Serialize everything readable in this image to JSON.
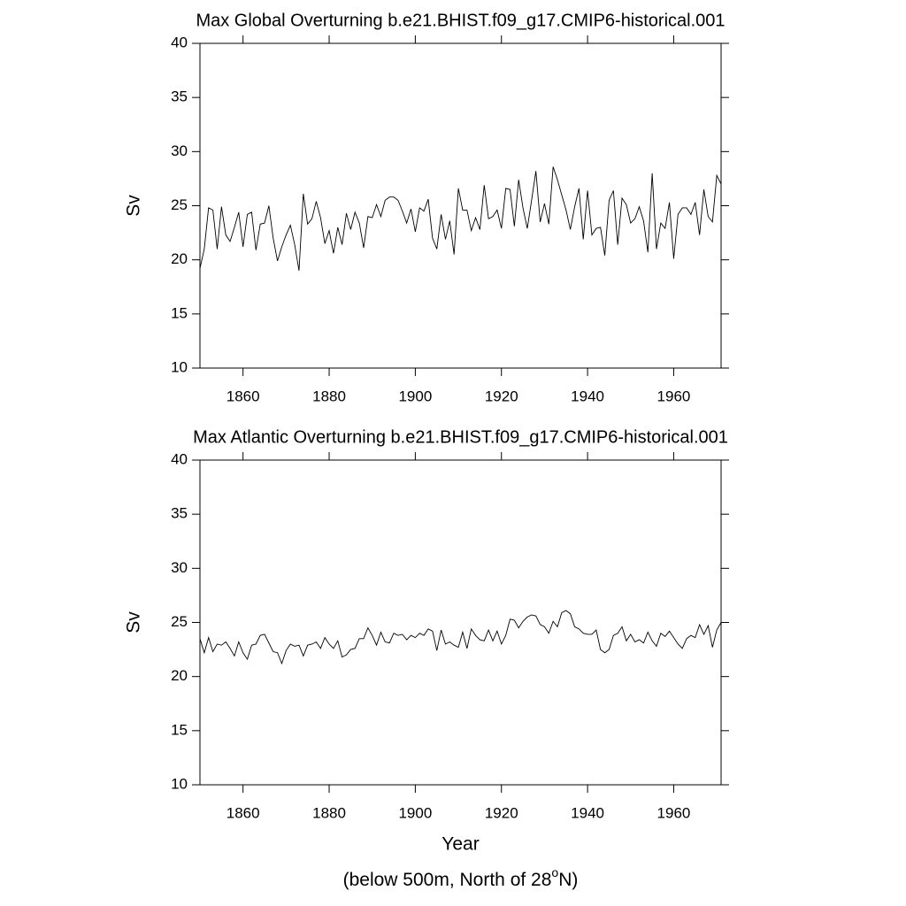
{
  "chart_data": [
    {
      "type": "line",
      "title": "Max Global Overturning b.e21.BHIST.f09_g17.CMIP6-historical.001",
      "ylabel": "Sv",
      "x": [
        1850,
        1851,
        1852,
        1853,
        1854,
        1855,
        1856,
        1857,
        1858,
        1859,
        1860,
        1861,
        1862,
        1863,
        1864,
        1865,
        1866,
        1867,
        1868,
        1869,
        1870,
        1871,
        1872,
        1873,
        1874,
        1875,
        1876,
        1877,
        1878,
        1879,
        1880,
        1881,
        1882,
        1883,
        1884,
        1885,
        1886,
        1887,
        1888,
        1889,
        1890,
        1891,
        1892,
        1893,
        1894,
        1895,
        1896,
        1897,
        1898,
        1899,
        1900,
        1901,
        1902,
        1903,
        1904,
        1905,
        1906,
        1907,
        1908,
        1909,
        1910,
        1911,
        1912,
        1913,
        1914,
        1915,
        1916,
        1917,
        1918,
        1919,
        1920,
        1921,
        1922,
        1923,
        1924,
        1925,
        1926,
        1927,
        1928,
        1929,
        1930,
        1931,
        1932,
        1933,
        1934,
        1935,
        1936,
        1937,
        1938,
        1939,
        1940,
        1941,
        1942,
        1943,
        1944,
        1945,
        1946,
        1947,
        1948,
        1949,
        1950,
        1951,
        1952,
        1953,
        1954,
        1955,
        1956,
        1957,
        1958,
        1959,
        1960,
        1961,
        1962,
        1963,
        1964,
        1965,
        1966,
        1967,
        1968,
        1969,
        1970,
        1971
      ],
      "series": [
        {
          "color": "#000000",
          "values": [
            19.2,
            21,
            24.8,
            24.6,
            21,
            24.9,
            22.3,
            21.7,
            23,
            24.4,
            21.2,
            24.2,
            24.4,
            20.9,
            23.3,
            23.4,
            25,
            22,
            19.9,
            21.2,
            22.3,
            23.2,
            21.4,
            19,
            26.1,
            23.3,
            23.8,
            25.4,
            23.9,
            21.5,
            22.7,
            20.6,
            23,
            21.4,
            24.3,
            22.8,
            24.4,
            23.4,
            21.1,
            24,
            23.9,
            25.1,
            24,
            25.5,
            25.8,
            25.8,
            25.5,
            24.5,
            23.4,
            24.7,
            22.6,
            24.8,
            24.5,
            25.6,
            22,
            21,
            24.2,
            21.9,
            23.6,
            20.5,
            26.6,
            24.6,
            24.6,
            22.7,
            23.9,
            22.8,
            26.9,
            23.8,
            24,
            24.6,
            22.9,
            26.6,
            26.5,
            23.1,
            27.4,
            24.8,
            22.9,
            25.5,
            28.2,
            23.5,
            25.2,
            23.3,
            28.6,
            27.4,
            26,
            24.6,
            22.8,
            24.9,
            26.6,
            21.9,
            26.4,
            22.3,
            22.9,
            23,
            20.4,
            25.5,
            26.4,
            21.4,
            25.7,
            25.1,
            23.4,
            23.8,
            24.9,
            23.6,
            20.7,
            28,
            21,
            23.4,
            22.9,
            25.3,
            20.1,
            24.2,
            24.8,
            24.8,
            24.2,
            25.3,
            22.3,
            26.5,
            24,
            23.5,
            27.8,
            27
          ]
        }
      ],
      "xlim": [
        1850,
        1971
      ],
      "ylim": [
        10,
        40
      ],
      "xticks": [
        1860,
        1880,
        1900,
        1920,
        1940,
        1960
      ],
      "yticks": [
        10,
        15,
        20,
        25,
        30,
        35,
        40
      ]
    },
    {
      "type": "line",
      "title": "Max Atlantic Overturning b.e21.BHIST.f09_g17.CMIP6-historical.001",
      "ylabel": "Sv",
      "xlabel": "Year",
      "note": [
        "(below 500m, North of 28",
        "o",
        "N)"
      ],
      "x": [
        1850,
        1851,
        1852,
        1853,
        1854,
        1855,
        1856,
        1857,
        1858,
        1859,
        1860,
        1861,
        1862,
        1863,
        1864,
        1865,
        1866,
        1867,
        1868,
        1869,
        1870,
        1871,
        1872,
        1873,
        1874,
        1875,
        1876,
        1877,
        1878,
        1879,
        1880,
        1881,
        1882,
        1883,
        1884,
        1885,
        1886,
        1887,
        1888,
        1889,
        1890,
        1891,
        1892,
        1893,
        1894,
        1895,
        1896,
        1897,
        1898,
        1899,
        1900,
        1901,
        1902,
        1903,
        1904,
        1905,
        1906,
        1907,
        1908,
        1909,
        1910,
        1911,
        1912,
        1913,
        1914,
        1915,
        1916,
        1917,
        1918,
        1919,
        1920,
        1921,
        1922,
        1923,
        1924,
        1925,
        1926,
        1927,
        1928,
        1929,
        1930,
        1931,
        1932,
        1933,
        1934,
        1935,
        1936,
        1937,
        1938,
        1939,
        1940,
        1941,
        1942,
        1943,
        1944,
        1945,
        1946,
        1947,
        1948,
        1949,
        1950,
        1951,
        1952,
        1953,
        1954,
        1955,
        1956,
        1957,
        1958,
        1959,
        1960,
        1961,
        1962,
        1963,
        1964,
        1965,
        1966,
        1967,
        1968,
        1969,
        1970,
        1971
      ],
      "series": [
        {
          "color": "#000000",
          "values": [
            23.5,
            22.2,
            23.6,
            22.3,
            23,
            22.9,
            23.2,
            22.6,
            21.9,
            23.2,
            22.2,
            21.6,
            22.9,
            23,
            23.8,
            23.9,
            23.1,
            22.3,
            22.2,
            21.2,
            22.4,
            23,
            22.8,
            22.9,
            21.9,
            22.9,
            23,
            23.2,
            22.6,
            23.6,
            23,
            22.6,
            23.3,
            21.8,
            22,
            22.5,
            22.6,
            23.5,
            23.5,
            24.5,
            23.8,
            22.9,
            24.1,
            23.2,
            23.1,
            24,
            23.8,
            23.9,
            23.4,
            23.8,
            23.6,
            24,
            23.8,
            24.4,
            24.2,
            22.4,
            24.3,
            23,
            23.2,
            22.9,
            22.7,
            24.1,
            22.6,
            24.4,
            23.8,
            23.4,
            23.3,
            24.3,
            23.3,
            24.2,
            23,
            23.8,
            25.3,
            25.2,
            24.5,
            25.1,
            25.5,
            25.7,
            25.6,
            24.8,
            24.6,
            24,
            25.1,
            24.6,
            25.9,
            26.1,
            25.8,
            24.6,
            24.4,
            24,
            23.9,
            23.9,
            24.3,
            22.5,
            22.2,
            22.5,
            23.8,
            24,
            24.6,
            23.3,
            23.9,
            23.2,
            23.4,
            23.1,
            24.1,
            23.3,
            22.8,
            24,
            23.7,
            24.2,
            23.6,
            23,
            22.6,
            23.5,
            23.8,
            23.6,
            24.8,
            23.9,
            24.7,
            22.7,
            24.3,
            25
          ]
        }
      ],
      "xlim": [
        1850,
        1971
      ],
      "ylim": [
        10,
        40
      ],
      "xticks": [
        1860,
        1880,
        1900,
        1920,
        1940,
        1960
      ],
      "yticks": [
        10,
        15,
        20,
        25,
        30,
        35,
        40
      ]
    }
  ]
}
